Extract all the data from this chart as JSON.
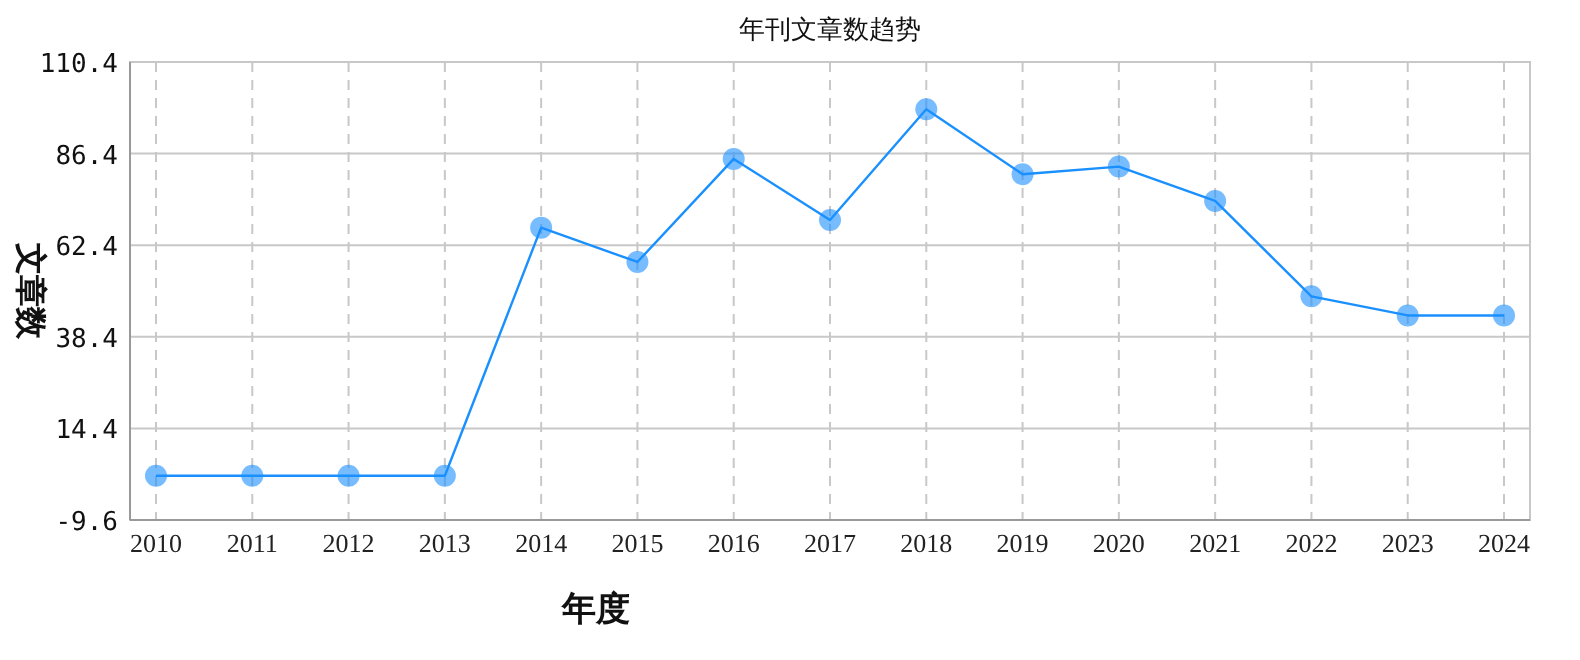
{
  "chart_data": {
    "type": "line",
    "title": "年刊文章数趋势",
    "xlabel": "年度",
    "ylabel": "文章数",
    "categories": [
      "2010",
      "2011",
      "2012",
      "2013",
      "2014",
      "2015",
      "2016",
      "2017",
      "2018",
      "2019",
      "2020",
      "2021",
      "2022",
      "2023",
      "2024"
    ],
    "series": [
      {
        "color": "#1a90ff",
        "values": [
          2,
          2,
          2,
          2,
          67,
          58,
          85,
          69,
          98,
          81,
          83,
          74,
          49,
          44,
          44
        ]
      }
    ],
    "ylim": [
      -9.6,
      110.4
    ],
    "yticks": [
      -9.6,
      14.4,
      38.4,
      62.4,
      86.4,
      110.4
    ],
    "grid": true,
    "marker": "circle",
    "line_style": "solid"
  }
}
